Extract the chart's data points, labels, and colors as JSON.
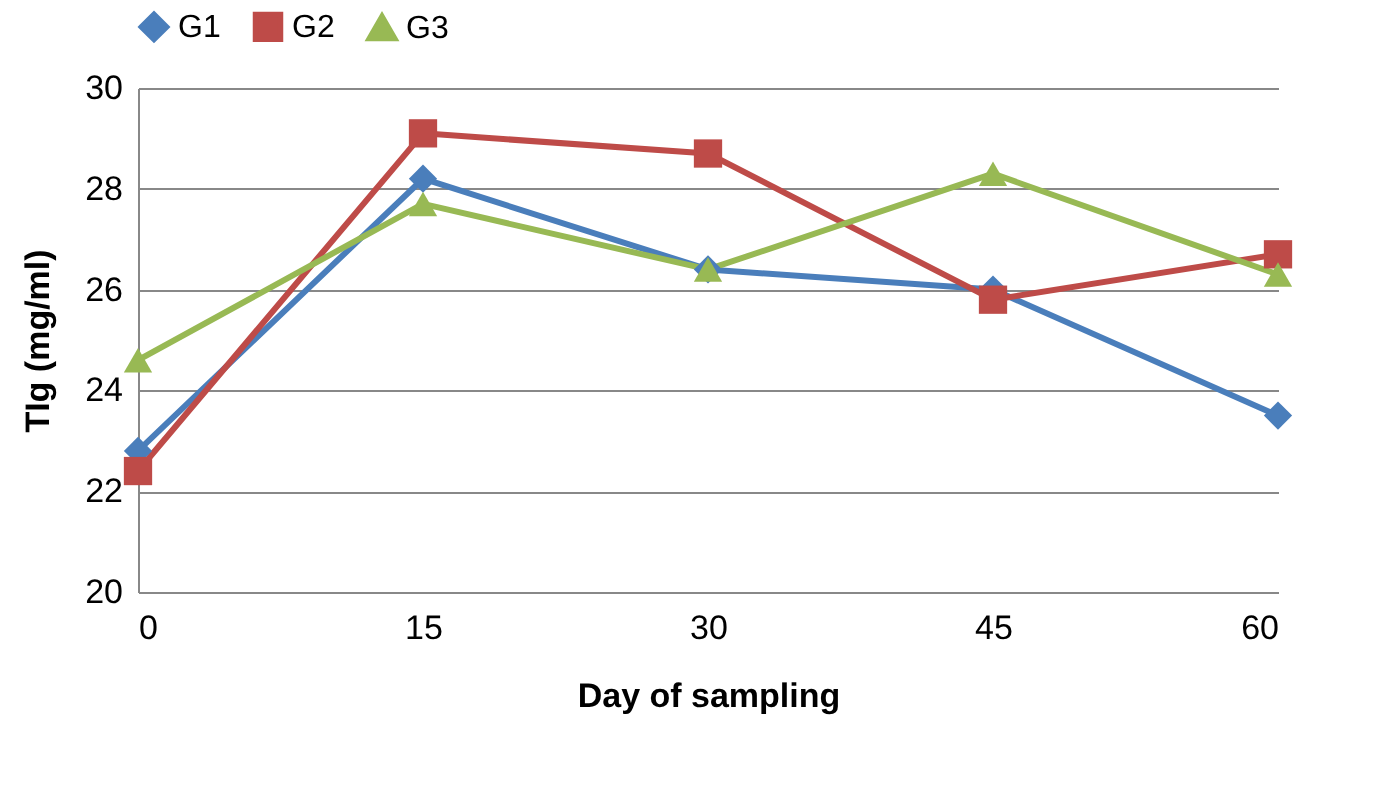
{
  "chart_data": {
    "type": "line",
    "xlabel": "Day of sampling",
    "ylabel": "TIg (mg/ml)",
    "x": [
      0,
      15,
      30,
      45,
      60
    ],
    "xlim": [
      0,
      60
    ],
    "xticks": [
      0,
      15,
      30,
      45,
      60
    ],
    "ylim": [
      20,
      30
    ],
    "yticks": [
      20,
      22,
      24,
      26,
      28,
      30
    ],
    "grid": "y",
    "legend": "top",
    "series": [
      {
        "name": "G1",
        "color": "#4a7ebb",
        "marker": "diamond",
        "values": [
          22.8,
          28.2,
          26.4,
          26.0,
          23.5
        ]
      },
      {
        "name": "G2",
        "color": "#be4b48",
        "marker": "square",
        "values": [
          22.4,
          29.1,
          28.7,
          25.8,
          26.7
        ]
      },
      {
        "name": "G3",
        "color": "#98b954",
        "marker": "triangle",
        "values": [
          24.6,
          27.7,
          26.4,
          28.3,
          26.3
        ]
      }
    ]
  }
}
